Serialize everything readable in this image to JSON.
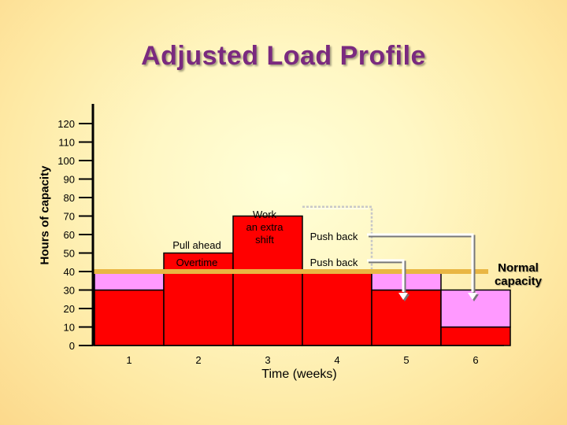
{
  "title": "Adjusted Load Profile",
  "chart_data": {
    "type": "bar",
    "xlabel": "Time (weeks)",
    "ylabel": "Hours of capacity",
    "ylim": [
      0,
      120
    ],
    "yticks": [
      0,
      10,
      20,
      30,
      40,
      50,
      60,
      70,
      80,
      90,
      100,
      110,
      120
    ],
    "categories": [
      "1",
      "2",
      "3",
      "4",
      "5",
      "6"
    ],
    "normal_capacity": 40,
    "series": [
      {
        "values": [
          30,
          40,
          40,
          40,
          30,
          10
        ]
      },
      {
        "values": [
          10,
          0,
          0,
          0,
          10,
          20
        ]
      },
      {
        "values": [
          0,
          10,
          30,
          0,
          0,
          0
        ]
      }
    ],
    "previous_load_outline": [
      null,
      null,
      null,
      75,
      null,
      null
    ],
    "colors": {
      "capacity": "#e9b643",
      "red": "#ff0000",
      "pink": "#ff99ff",
      "border": "#000000",
      "arrow": "#ffffff"
    },
    "annotations": {
      "pull_ahead": "Pull ahead",
      "overtime": "Overtime",
      "extra_shift": "Work an extra shift",
      "push_back_1": "Push back",
      "push_back_2": "Push back",
      "normal_capacity": "Normal capacity"
    }
  }
}
